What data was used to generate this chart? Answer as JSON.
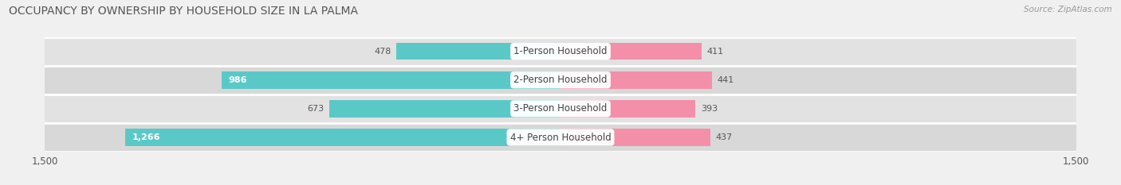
{
  "title": "OCCUPANCY BY OWNERSHIP BY HOUSEHOLD SIZE IN LA PALMA",
  "source": "Source: ZipAtlas.com",
  "categories": [
    "4+ Person Household",
    "3-Person Household",
    "2-Person Household",
    "1-Person Household"
  ],
  "owner_values": [
    1266,
    673,
    986,
    478
  ],
  "renter_values": [
    437,
    393,
    441,
    411
  ],
  "max_axis": 1500,
  "owner_color": "#5BC8C8",
  "renter_color": "#F48FAA",
  "bg_color": "#f0f0f0",
  "row_colors": [
    "#dcdcdc",
    "#e8e8e8",
    "#dcdcdc",
    "#e8e8e8"
  ],
  "title_fontsize": 10,
  "axis_label_fontsize": 8.5,
  "bar_label_fontsize": 8,
  "category_fontsize": 8.5,
  "legend_fontsize": 8.5,
  "source_fontsize": 7.5,
  "inside_label_threshold": 900
}
